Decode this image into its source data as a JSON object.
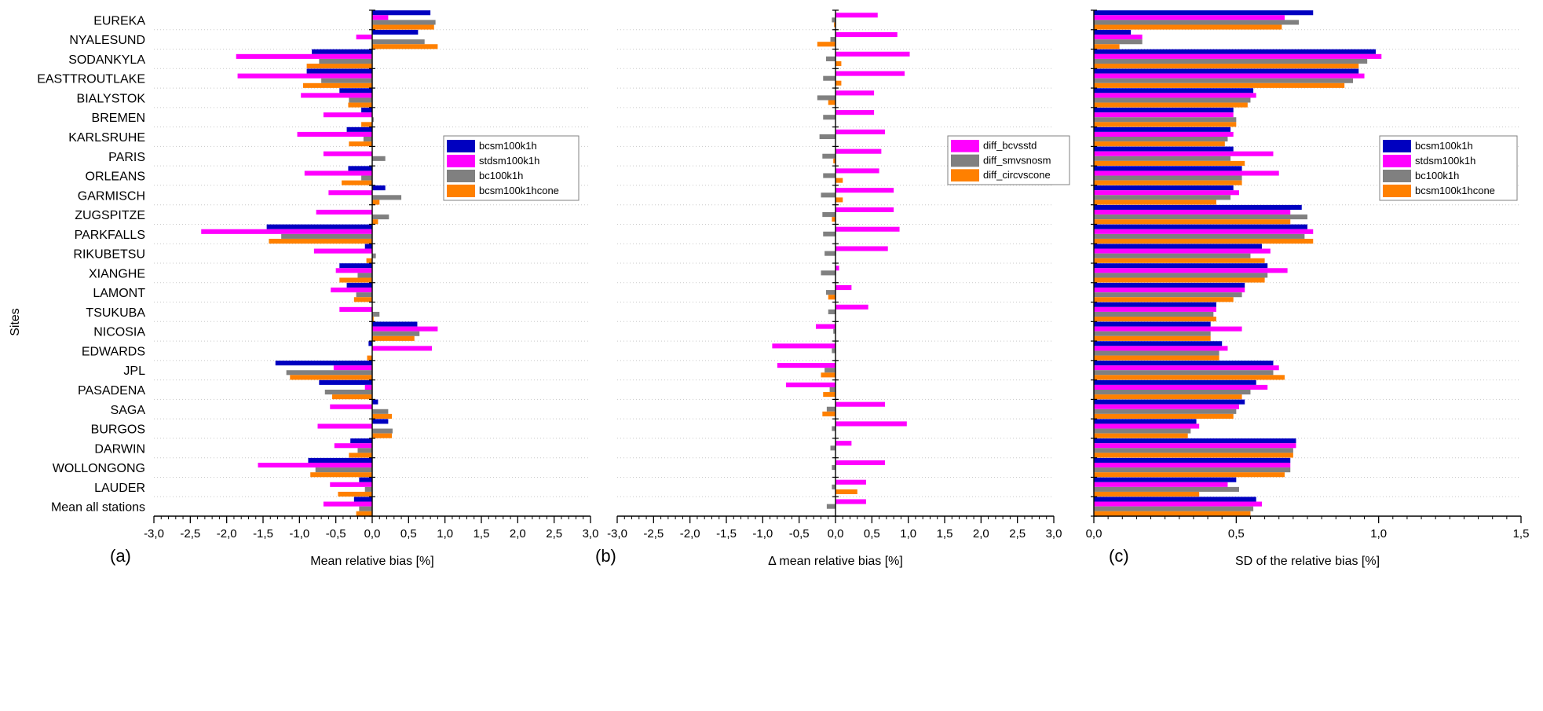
{
  "figure": {
    "y_axis_title": "Sites",
    "panel_letters": [
      "(a)",
      "(b)",
      "(c)"
    ]
  },
  "chart_data": [
    {
      "panel": "(a)",
      "type": "bar",
      "orientation": "horizontal",
      "xlabel": "Mean relative bias [%]",
      "ylabel": "Sites",
      "xlim": [
        -3.0,
        3.0
      ],
      "xticks": [
        "-3,0",
        "-2,5",
        "-2,0",
        "-1,5",
        "-1,0",
        "-0,5",
        "0,0",
        "0,5",
        "1,0",
        "1,5",
        "2,0",
        "2,5",
        "3,0"
      ],
      "grid": "horizontal dotted",
      "legend_position": "upper-right",
      "categories": [
        "EUREKA",
        "NYALESUND",
        "SODANKYLA",
        "EASTTROUTLAKE",
        "BIALYSTOK",
        "BREMEN",
        "KARLSRUHE",
        "PARIS",
        "ORLEANS",
        "GARMISCH",
        "ZUGSPITZE",
        "PARKFALLS",
        "RIKUBETSU",
        "XIANGHE",
        "LAMONT",
        "TSUKUBA",
        "NICOSIA",
        "EDWARDS",
        "JPL",
        "PASADENA",
        "SAGA",
        "BURGOS",
        "DARWIN",
        "WOLLONGONG",
        "LAUDER",
        "Mean all stations"
      ],
      "series": [
        {
          "name": "bcsm100k1h",
          "color": "#0000c0",
          "values": [
            0.8,
            0.63,
            -0.83,
            -0.9,
            -0.45,
            -0.15,
            -0.35,
            0.0,
            -0.33,
            0.18,
            0.0,
            -1.45,
            -0.1,
            -0.45,
            -0.35,
            0.0,
            0.62,
            -0.05,
            -1.33,
            -0.73,
            0.08,
            0.22,
            -0.3,
            -0.88,
            -0.18,
            -0.25
          ]
        },
        {
          "name": "stdsm100k1h",
          "color": "#ff00ff",
          "values": [
            0.22,
            -0.22,
            -1.87,
            -1.85,
            -0.98,
            -0.67,
            -1.03,
            -0.67,
            -0.93,
            -0.6,
            -0.77,
            -2.35,
            -0.8,
            -0.5,
            -0.57,
            -0.45,
            0.9,
            0.82,
            -0.53,
            -0.1,
            -0.58,
            -0.75,
            -0.52,
            -1.57,
            -0.58,
            -0.67
          ]
        },
        {
          "name": "bc100k1h",
          "color": "#808080",
          "values": [
            0.87,
            0.72,
            -0.73,
            -0.7,
            -0.32,
            0.02,
            -0.12,
            0.18,
            -0.15,
            0.4,
            0.23,
            -1.25,
            0.05,
            -0.2,
            -0.22,
            0.1,
            0.65,
            0.0,
            -1.18,
            -0.65,
            0.22,
            0.28,
            -0.2,
            -0.78,
            -0.1,
            -0.18
          ]
        },
        {
          "name": "bcsm100k1hcone",
          "color": "#ff8000",
          "values": [
            0.85,
            0.9,
            -0.9,
            -0.95,
            -0.33,
            -0.15,
            -0.32,
            0.0,
            -0.42,
            0.1,
            0.08,
            -1.42,
            -0.08,
            -0.45,
            -0.25,
            0.02,
            0.58,
            -0.07,
            -1.13,
            -0.55,
            0.27,
            0.27,
            -0.32,
            -0.85,
            -0.47,
            -0.22
          ]
        }
      ]
    },
    {
      "panel": "(b)",
      "type": "bar",
      "orientation": "horizontal",
      "xlabel": "Δ mean relative bias [%]",
      "ylabel": "Sites",
      "xlim": [
        -3.0,
        3.0
      ],
      "xticks": [
        "-3,0",
        "-2,5",
        "-2,0",
        "-1,5",
        "-1,0",
        "-0,5",
        "0,0",
        "0,5",
        "1,0",
        "1,5",
        "2,0",
        "2,5",
        "3,0"
      ],
      "grid": "horizontal dotted",
      "legend_position": "upper-right",
      "categories": [
        "EUREKA",
        "NYALESUND",
        "SODANKYLA",
        "EASTTROUTLAKE",
        "BIALYSTOK",
        "BREMEN",
        "KARLSRUHE",
        "PARIS",
        "ORLEANS",
        "GARMISCH",
        "ZUGSPITZE",
        "PARKFALLS",
        "RIKUBETSU",
        "XIANGHE",
        "LAMONT",
        "TSUKUBA",
        "NICOSIA",
        "EDWARDS",
        "JPL",
        "PASADENA",
        "SAGA",
        "BURGOS",
        "DARWIN",
        "WOLLONGONG",
        "LAUDER",
        "Mean all stations"
      ],
      "series": [
        {
          "name": "diff_bcvsstd",
          "color": "#ff00ff",
          "values": [
            0.58,
            0.85,
            1.02,
            0.95,
            0.53,
            0.53,
            0.68,
            0.63,
            0.6,
            0.8,
            0.8,
            0.88,
            0.72,
            0.05,
            0.22,
            0.45,
            -0.27,
            -0.87,
            -0.8,
            -0.68,
            0.68,
            0.98,
            0.22,
            0.68,
            0.42,
            0.42
          ]
        },
        {
          "name": "diff_smvsnosm",
          "color": "#808080",
          "values": [
            -0.05,
            -0.07,
            -0.13,
            -0.17,
            -0.25,
            -0.17,
            -0.22,
            -0.18,
            -0.17,
            -0.2,
            -0.18,
            -0.17,
            -0.15,
            -0.2,
            -0.13,
            -0.1,
            -0.03,
            -0.05,
            -0.15,
            -0.08,
            -0.12,
            -0.05,
            -0.07,
            -0.05,
            -0.05,
            -0.12
          ]
        },
        {
          "name": "diff_circvscone",
          "color": "#ff8000",
          "values": [
            -0.02,
            -0.25,
            0.08,
            0.08,
            -0.1,
            0.0,
            0.0,
            -0.03,
            0.1,
            0.1,
            -0.05,
            0.0,
            0.0,
            0.0,
            -0.1,
            0.0,
            0.0,
            0.0,
            -0.2,
            -0.17,
            -0.18,
            0.0,
            0.0,
            0.0,
            0.3,
            0.0
          ]
        }
      ]
    },
    {
      "panel": "(c)",
      "type": "bar",
      "orientation": "horizontal",
      "xlabel": "SD of the relative bias [%]",
      "ylabel": "Sites",
      "xlim": [
        0.0,
        1.5
      ],
      "xticks": [
        "0,0",
        "0,5",
        "1,0",
        "1,5"
      ],
      "grid": "horizontal dotted",
      "legend_position": "upper-right",
      "categories": [
        "EUREKA",
        "NYALESUND",
        "SODANKYLA",
        "EASTTROUTLAKE",
        "BIALYSTOK",
        "BREMEN",
        "KARLSRUHE",
        "PARIS",
        "ORLEANS",
        "GARMISCH",
        "ZUGSPITZE",
        "PARKFALLS",
        "RIKUBETSU",
        "XIANGHE",
        "LAMONT",
        "TSUKUBA",
        "NICOSIA",
        "EDWARDS",
        "JPL",
        "PASADENA",
        "SAGA",
        "BURGOS",
        "DARWIN",
        "WOLLONGONG",
        "LAUDER",
        "Mean all stations"
      ],
      "series": [
        {
          "name": "bcsm100k1h",
          "color": "#0000c0",
          "values": [
            0.77,
            0.13,
            0.99,
            0.93,
            0.56,
            0.49,
            0.48,
            0.49,
            0.52,
            0.49,
            0.73,
            0.75,
            0.59,
            0.61,
            0.53,
            0.43,
            0.41,
            0.45,
            0.63,
            0.57,
            0.53,
            0.36,
            0.71,
            0.69,
            0.5,
            0.57
          ]
        },
        {
          "name": "stdsm100k1h",
          "color": "#ff00ff",
          "values": [
            0.67,
            0.17,
            1.01,
            0.95,
            0.57,
            0.49,
            0.49,
            0.63,
            0.65,
            0.51,
            0.69,
            0.77,
            0.62,
            0.68,
            0.53,
            0.43,
            0.52,
            0.47,
            0.65,
            0.61,
            0.51,
            0.37,
            0.71,
            0.69,
            0.47,
            0.59
          ]
        },
        {
          "name": "bc100k1h",
          "color": "#808080",
          "values": [
            0.72,
            0.17,
            0.96,
            0.91,
            0.55,
            0.5,
            0.47,
            0.48,
            0.52,
            0.48,
            0.75,
            0.74,
            0.55,
            0.61,
            0.52,
            0.42,
            0.41,
            0.44,
            0.63,
            0.55,
            0.5,
            0.34,
            0.7,
            0.69,
            0.51,
            0.56
          ]
        },
        {
          "name": "bcsm100k1hcone",
          "color": "#ff8000",
          "values": [
            0.66,
            0.09,
            0.93,
            0.88,
            0.54,
            0.5,
            0.46,
            0.53,
            0.52,
            0.43,
            0.69,
            0.77,
            0.6,
            0.6,
            0.49,
            0.43,
            0.41,
            0.44,
            0.67,
            0.52,
            0.49,
            0.33,
            0.7,
            0.67,
            0.37,
            0.55
          ]
        }
      ]
    }
  ]
}
